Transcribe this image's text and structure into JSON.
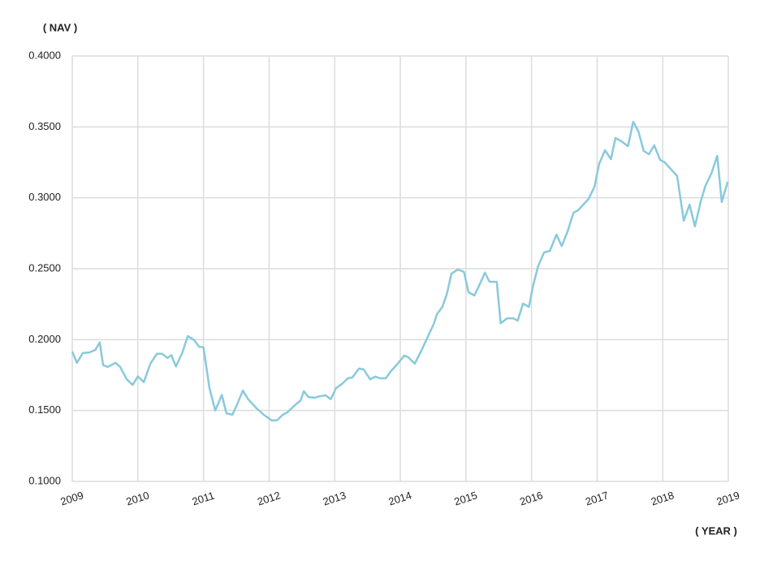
{
  "chart_data": {
    "type": "line",
    "ylabel": "( NAV )",
    "xlabel": "( YEAR )",
    "xlim": [
      2009,
      2019
    ],
    "xticks": [
      2009,
      2010,
      2011,
      2012,
      2013,
      2014,
      2015,
      2016,
      2017,
      2018,
      2019
    ],
    "ylim": [
      0.1,
      0.4
    ],
    "yticks": [
      {
        "value": 0.1,
        "label": "0.1000"
      },
      {
        "value": 0.15,
        "label": "0.1500"
      },
      {
        "value": 0.2,
        "label": "0.2000"
      },
      {
        "value": 0.25,
        "label": "0.2500"
      },
      {
        "value": 0.3,
        "label": "0.3000"
      },
      {
        "value": 0.35,
        "label": "0.3500"
      },
      {
        "value": 0.4,
        "label": "0.4000"
      }
    ],
    "grid": true,
    "x": [
      2009.0,
      2009.07,
      2009.16,
      2009.26,
      2009.35,
      2009.42,
      2009.47,
      2009.54,
      2009.66,
      2009.73,
      2009.83,
      2009.92,
      2010.0,
      2010.09,
      2010.19,
      2010.29,
      2010.37,
      2010.45,
      2010.51,
      2010.58,
      2010.68,
      2010.76,
      2010.86,
      2010.93,
      2011.0,
      2011.09,
      2011.18,
      2011.28,
      2011.35,
      2011.44,
      2011.51,
      2011.6,
      2011.68,
      2011.81,
      2011.92,
      2012.04,
      2012.12,
      2012.21,
      2012.28,
      2012.4,
      2012.48,
      2012.53,
      2012.6,
      2012.69,
      2012.77,
      2012.86,
      2012.94,
      2013.02,
      2013.11,
      2013.2,
      2013.27,
      2013.37,
      2013.44,
      2013.54,
      2013.62,
      2013.69,
      2013.78,
      2013.86,
      2013.96,
      2014.06,
      2014.12,
      2014.22,
      2014.32,
      2014.42,
      2014.51,
      2014.56,
      2014.64,
      2014.71,
      2014.78,
      2014.88,
      2014.97,
      2015.04,
      2015.13,
      2015.2,
      2015.29,
      2015.36,
      2015.47,
      2015.53,
      2015.63,
      2015.72,
      2015.79,
      2015.87,
      2015.96,
      2016.03,
      2016.1,
      2016.19,
      2016.28,
      2016.38,
      2016.46,
      2016.55,
      2016.64,
      2016.71,
      2016.78,
      2016.87,
      2016.96,
      2017.03,
      2017.12,
      2017.21,
      2017.28,
      2017.37,
      2017.47,
      2017.55,
      2017.63,
      2017.71,
      2017.79,
      2017.87,
      2017.96,
      2018.03,
      2018.12,
      2018.22,
      2018.32,
      2018.41,
      2018.49,
      2018.58,
      2018.65,
      2018.74,
      2018.83,
      2018.9,
      2018.99
    ],
    "series": [
      {
        "color": "#89c9dc",
        "values": [
          0.1916,
          0.1836,
          0.1905,
          0.191,
          0.1927,
          0.198,
          0.182,
          0.1807,
          0.1836,
          0.1807,
          0.172,
          0.168,
          0.174,
          0.17,
          0.183,
          0.19,
          0.19,
          0.187,
          0.189,
          0.181,
          0.191,
          0.2025,
          0.1996,
          0.195,
          0.1945,
          0.166,
          0.15,
          0.161,
          0.148,
          0.147,
          0.154,
          0.164,
          0.158,
          0.1515,
          0.147,
          0.143,
          0.143,
          0.147,
          0.1487,
          0.154,
          0.157,
          0.1636,
          0.1595,
          0.159,
          0.16,
          0.1607,
          0.158,
          0.1658,
          0.1687,
          0.1727,
          0.1733,
          0.1796,
          0.179,
          0.172,
          0.1739,
          0.1727,
          0.1727,
          0.1779,
          0.183,
          0.1887,
          0.1876,
          0.183,
          0.1922,
          0.202,
          0.211,
          0.218,
          0.223,
          0.2323,
          0.2466,
          0.2494,
          0.2477,
          0.2334,
          0.2311,
          0.238,
          0.2472,
          0.2408,
          0.2408,
          0.2116,
          0.215,
          0.215,
          0.2134,
          0.2254,
          0.2231,
          0.2391,
          0.2517,
          0.2614,
          0.2626,
          0.274,
          0.266,
          0.2763,
          0.2895,
          0.2912,
          0.2947,
          0.2992,
          0.3078,
          0.3238,
          0.3336,
          0.3273,
          0.3422,
          0.3399,
          0.3364,
          0.3536,
          0.3467,
          0.333,
          0.3307,
          0.337,
          0.3267,
          0.325,
          0.3204,
          0.3153,
          0.2838,
          0.2952,
          0.2798,
          0.2975,
          0.3084,
          0.317,
          0.3296,
          0.297,
          0.3113
        ]
      }
    ]
  }
}
